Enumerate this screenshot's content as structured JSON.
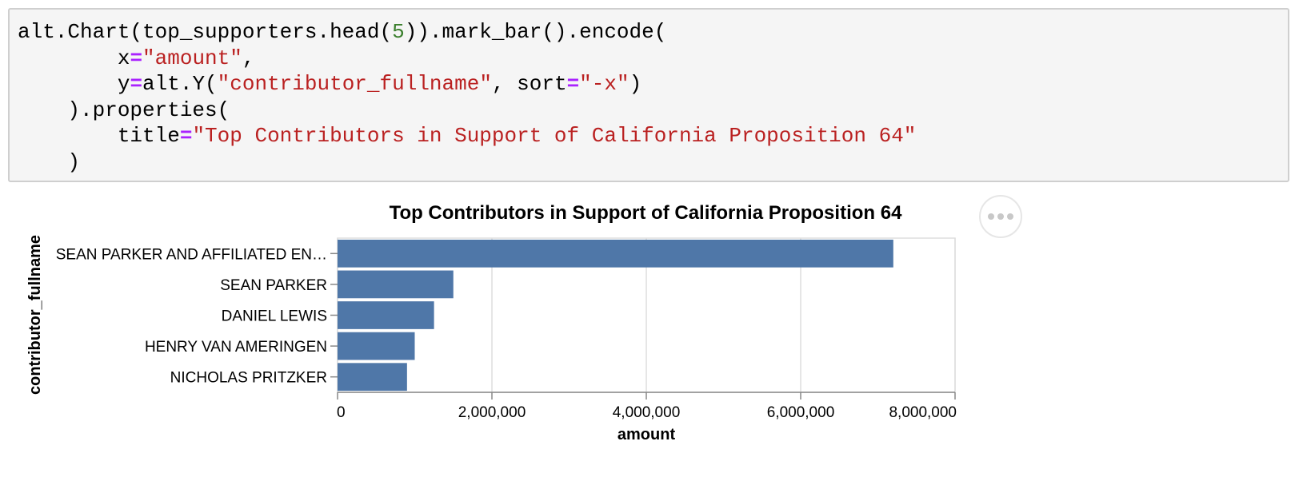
{
  "code": {
    "lines": [
      [
        {
          "t": "alt.Chart(top_supporters.head("
        },
        {
          "t": "5",
          "c": "num"
        },
        {
          "t": ")).mark_bar().encode("
        }
      ],
      [
        {
          "t": "        x"
        },
        {
          "t": "=",
          "c": "op"
        },
        {
          "t": "\"amount\"",
          "c": "str"
        },
        {
          "t": ","
        }
      ],
      [
        {
          "t": "        y"
        },
        {
          "t": "=",
          "c": "op"
        },
        {
          "t": "alt.Y("
        },
        {
          "t": "\"contributor_fullname\"",
          "c": "str"
        },
        {
          "t": ", sort"
        },
        {
          "t": "=",
          "c": "op"
        },
        {
          "t": "\"-x\"",
          "c": "str"
        },
        {
          "t": ")"
        }
      ],
      [
        {
          "t": "    ).properties("
        }
      ],
      [
        {
          "t": "        title"
        },
        {
          "t": "=",
          "c": "op"
        },
        {
          "t": "\"Top Contributors in Support of California Proposition 64\"",
          "c": "str"
        }
      ],
      [
        {
          "t": "    )"
        }
      ]
    ]
  },
  "chart_data": {
    "type": "bar",
    "orientation": "horizontal",
    "title": "Top Contributors in Support of California Proposition 64",
    "xlabel": "amount",
    "ylabel": "contributor_fullname",
    "categories": [
      "SEAN PARKER AND AFFILIATED EN…",
      "SEAN PARKER",
      "DANIEL LEWIS",
      "HENRY VAN AMERINGEN",
      "NICHOLAS PRITZKER"
    ],
    "values": [
      7200000,
      1500000,
      1250000,
      1000000,
      900000
    ],
    "xlim": [
      0,
      8000000
    ],
    "xticks": [
      0,
      2000000,
      4000000,
      6000000,
      8000000
    ],
    "xtick_labels": [
      "0",
      "2,000,000",
      "4,000,000",
      "6,000,000",
      "8,000,000"
    ],
    "grid": true,
    "bar_color": "#4f77a8"
  }
}
